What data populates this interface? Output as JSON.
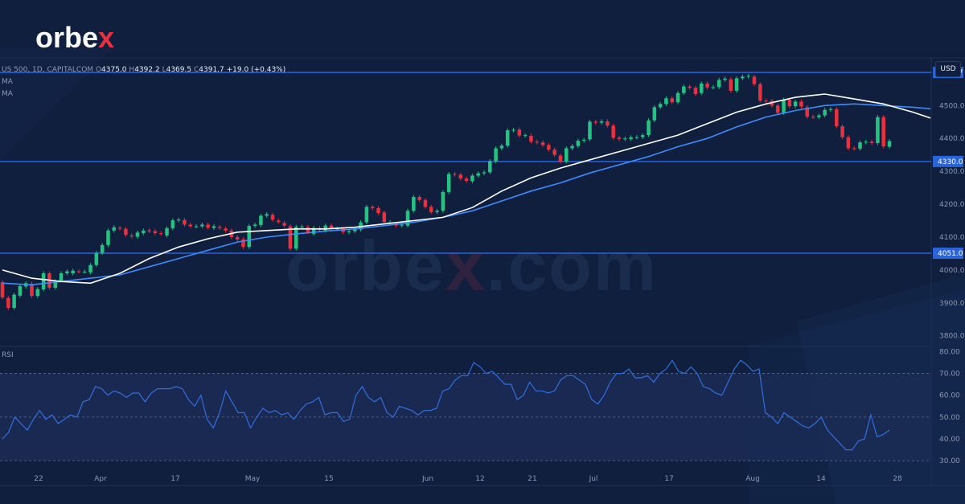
{
  "brand": {
    "logo_main": "orbe",
    "logo_x": "x",
    "watermark_main": "orbe",
    "watermark_x": "x",
    "watermark_tail": ".com"
  },
  "legend": {
    "symbol": "US 500, 1D, CAPITALCOM",
    "o_label": "O",
    "open": "4375.0",
    "h_label": "H",
    "high": "4392.2",
    "l_label": "L",
    "low": "4369.5",
    "c_label": "C",
    "close": "4391.7",
    "change": "+19.0 (+0.43%)",
    "ma1": "MA",
    "ma2": "MA"
  },
  "currency": "USD",
  "rsi_title": "RSI",
  "colors": {
    "bull": "#26c281",
    "bear": "#e8313f",
    "ma_fast": "#ffffff",
    "ma_slow": "#3d8bfd",
    "rsi_line": "#2f6fe0",
    "level_line": "#2b63d9",
    "band_fill": "#1b2b55"
  },
  "chart_data": {
    "type": "candlestick",
    "y_ticks": [
      3800.0,
      3900.0,
      4000.0,
      4100.0,
      4200.0,
      4300.0,
      4400.0,
      4500.0
    ],
    "ylim": [
      3770,
      4645
    ],
    "levels": [
      4600.7,
      4330.0,
      4051.0
    ],
    "level_labels": [
      "4600.7",
      "4330.0",
      "4051.0"
    ],
    "x_labels": [
      "22",
      "Apr",
      "17",
      "May",
      "15",
      "Jun",
      "12",
      "21",
      "Jul",
      "17",
      "Aug",
      "14",
      "28"
    ],
    "candles": [
      [
        3963,
        3917
      ],
      [
        3915,
        3885
      ],
      [
        3885,
        3925
      ],
      [
        3922,
        3951
      ],
      [
        3950,
        3960
      ],
      [
        3958,
        3921
      ],
      [
        3921,
        3942
      ],
      [
        3941,
        3990
      ],
      [
        3990,
        3946
      ],
      [
        3946,
        3965
      ],
      [
        3968,
        3990
      ],
      [
        3990,
        3996
      ],
      [
        3990,
        3998
      ],
      [
        3996,
        3995
      ],
      [
        3995,
        3995
      ],
      [
        3993,
        4015
      ],
      [
        4015,
        4052
      ],
      [
        4052,
        4076
      ],
      [
        4076,
        4120
      ],
      [
        4120,
        4130
      ],
      [
        4128,
        4126
      ],
      [
        4125,
        4107
      ],
      [
        4105,
        4102
      ],
      [
        4101,
        4114
      ],
      [
        4112,
        4120
      ],
      [
        4121,
        4118
      ],
      [
        4118,
        4112
      ],
      [
        4112,
        4110
      ],
      [
        4105,
        4127
      ],
      [
        4127,
        4151
      ],
      [
        4151,
        4153
      ],
      [
        4152,
        4138
      ],
      [
        4138,
        4133
      ],
      [
        4133,
        4133
      ],
      [
        4133,
        4138
      ],
      [
        4138,
        4129
      ],
      [
        4128,
        4133
      ],
      [
        4131,
        4128
      ],
      [
        4126,
        4120
      ],
      [
        4120,
        4100
      ],
      [
        4100,
        4093
      ],
      [
        4093,
        4070
      ],
      [
        4070,
        4134
      ],
      [
        4134,
        4138
      ],
      [
        4137,
        4165
      ],
      [
        4165,
        4170
      ],
      [
        4168,
        4153
      ],
      [
        4150,
        4146
      ],
      [
        4143,
        4135
      ],
      [
        4133,
        4065
      ],
      [
        4065,
        4131
      ],
      [
        4131,
        4132
      ],
      [
        4131,
        4115
      ],
      [
        4110,
        4128
      ],
      [
        4128,
        4122
      ],
      [
        4120,
        4135
      ],
      [
        4135,
        4126
      ],
      [
        4125,
        4126
      ],
      [
        4126,
        4115
      ],
      [
        4115,
        4118
      ],
      [
        4118,
        4123
      ],
      [
        4123,
        4145
      ],
      [
        4145,
        4192
      ],
      [
        4192,
        4188
      ],
      [
        4188,
        4173
      ],
      [
        4175,
        4146
      ],
      [
        4145,
        4145
      ],
      [
        4140,
        4135
      ],
      [
        4135,
        4138
      ],
      [
        4135,
        4180
      ],
      [
        4180,
        4222
      ],
      [
        4222,
        4213
      ],
      [
        4213,
        4192
      ],
      [
        4192,
        4176
      ],
      [
        4176,
        4180
      ],
      [
        4180,
        4237
      ],
      [
        4237,
        4292
      ],
      [
        4292,
        4290
      ],
      [
        4290,
        4278
      ],
      [
        4278,
        4271
      ],
      [
        4270,
        4287
      ],
      [
        4287,
        4294
      ],
      [
        4294,
        4297
      ],
      [
        4297,
        4331
      ],
      [
        4331,
        4370
      ],
      [
        4370,
        4378
      ],
      [
        4378,
        4425
      ],
      [
        4425,
        4426
      ],
      [
        4427,
        4409
      ],
      [
        4409,
        4410
      ],
      [
        4408,
        4390
      ],
      [
        4390,
        4388
      ],
      [
        4388,
        4380
      ],
      [
        4380,
        4366
      ],
      [
        4366,
        4350
      ],
      [
        4348,
        4330
      ],
      [
        4330,
        4370
      ],
      [
        4370,
        4377
      ],
      [
        4377,
        4393
      ],
      [
        4393,
        4396
      ],
      [
        4397,
        4451
      ],
      [
        4451,
        4448
      ],
      [
        4448,
        4452
      ],
      [
        4452,
        4439
      ],
      [
        4439,
        4402
      ],
      [
        4402,
        4398
      ],
      [
        4398,
        4400
      ],
      [
        4398,
        4403
      ],
      [
        4403,
        4404
      ],
      [
        4404,
        4410
      ],
      [
        4410,
        4455
      ],
      [
        4455,
        4495
      ],
      [
        4495,
        4505
      ],
      [
        4505,
        4522
      ],
      [
        4522,
        4510
      ],
      [
        4510,
        4538
      ],
      [
        4538,
        4558
      ],
      [
        4558,
        4554
      ],
      [
        4554,
        4535
      ],
      [
        4538,
        4567
      ],
      [
        4567,
        4555
      ],
      [
        4555,
        4556
      ],
      [
        4556,
        4578
      ],
      [
        4578,
        4582
      ],
      [
        4580,
        4545
      ],
      [
        4545,
        4583
      ],
      [
        4583,
        4588
      ],
      [
        4588,
        4590
      ],
      [
        4588,
        4565
      ],
      [
        4565,
        4515
      ],
      [
        4515,
        4514
      ],
      [
        4514,
        4500
      ],
      [
        4500,
        4478
      ],
      [
        4478,
        4518
      ],
      [
        4518,
        4498
      ],
      [
        4498,
        4512
      ],
      [
        4512,
        4497
      ],
      [
        4495,
        4466
      ],
      [
        4466,
        4465
      ],
      [
        4465,
        4470
      ],
      [
        4470,
        4487
      ],
      [
        4487,
        4489
      ],
      [
        4489,
        4437
      ],
      [
        4437,
        4404
      ],
      [
        4404,
        4370
      ],
      [
        4370,
        4369
      ],
      [
        4369,
        4388
      ],
      [
        4388,
        4390
      ],
      [
        4390,
        4386
      ],
      [
        4386,
        4465
      ],
      [
        4465,
        4376
      ],
      [
        4375,
        4392
      ]
    ],
    "ma_fast": [
      [
        0,
        4000
      ],
      [
        5,
        3975
      ],
      [
        10,
        3965
      ],
      [
        15,
        3960
      ],
      [
        20,
        3990
      ],
      [
        25,
        4035
      ],
      [
        30,
        4070
      ],
      [
        35,
        4095
      ],
      [
        40,
        4115
      ],
      [
        45,
        4120
      ],
      [
        50,
        4125
      ],
      [
        55,
        4125
      ],
      [
        60,
        4130
      ],
      [
        65,
        4140
      ],
      [
        70,
        4150
      ],
      [
        75,
        4160
      ],
      [
        80,
        4190
      ],
      [
        85,
        4240
      ],
      [
        90,
        4280
      ],
      [
        95,
        4310
      ],
      [
        100,
        4335
      ],
      [
        105,
        4360
      ],
      [
        110,
        4385
      ],
      [
        115,
        4410
      ],
      [
        120,
        4445
      ],
      [
        125,
        4480
      ],
      [
        130,
        4505
      ],
      [
        135,
        4525
      ],
      [
        140,
        4535
      ],
      [
        145,
        4520
      ],
      [
        150,
        4505
      ],
      [
        155,
        4480
      ],
      [
        158,
        4462
      ]
    ],
    "ma_slow": [
      [
        0,
        3960
      ],
      [
        5,
        3955
      ],
      [
        10,
        3965
      ],
      [
        15,
        3975
      ],
      [
        20,
        3985
      ],
      [
        25,
        4010
      ],
      [
        30,
        4035
      ],
      [
        35,
        4060
      ],
      [
        40,
        4085
      ],
      [
        45,
        4100
      ],
      [
        50,
        4110
      ],
      [
        55,
        4118
      ],
      [
        60,
        4125
      ],
      [
        65,
        4135
      ],
      [
        70,
        4145
      ],
      [
        75,
        4160
      ],
      [
        80,
        4180
      ],
      [
        85,
        4210
      ],
      [
        90,
        4240
      ],
      [
        95,
        4265
      ],
      [
        100,
        4295
      ],
      [
        105,
        4320
      ],
      [
        110,
        4345
      ],
      [
        115,
        4375
      ],
      [
        120,
        4400
      ],
      [
        125,
        4435
      ],
      [
        130,
        4465
      ],
      [
        135,
        4485
      ],
      [
        140,
        4500
      ],
      [
        145,
        4505
      ],
      [
        150,
        4500
      ],
      [
        155,
        4495
      ],
      [
        158,
        4490
      ]
    ],
    "rsi_ticks": [
      30,
      40,
      50,
      60,
      70,
      80
    ],
    "rsi_ylim": [
      26,
      82
    ],
    "rsi_band": [
      30,
      70
    ],
    "rsi": [
      40,
      43,
      50,
      47,
      44,
      49,
      53,
      49,
      51,
      47,
      49,
      51,
      50,
      57,
      58,
      64,
      63,
      60,
      62,
      61,
      59,
      61,
      61,
      57,
      61,
      63,
      63,
      63,
      64,
      63,
      58,
      55,
      60,
      49,
      45,
      52,
      62,
      57,
      52,
      52,
      45,
      50,
      54,
      52,
      53,
      51,
      52,
      49,
      53,
      56,
      57,
      59,
      51,
      52,
      52,
      48,
      49,
      60,
      64,
      59,
      57,
      59,
      52,
      50,
      55,
      54,
      53,
      51,
      53,
      53,
      54,
      62,
      63,
      67,
      69,
      69,
      75,
      73,
      70,
      71,
      68,
      65,
      65,
      58,
      60,
      66,
      62,
      62,
      61,
      62,
      67,
      69,
      69,
      67,
      65,
      58,
      56,
      60,
      66,
      70,
      70,
      72,
      68,
      68,
      69,
      66,
      70,
      72,
      76,
      71,
      70,
      73,
      70,
      64,
      63,
      61,
      60,
      66,
      72,
      76,
      74,
      71,
      72,
      52,
      50,
      47,
      52,
      50,
      48,
      46,
      45,
      47,
      50,
      44,
      41,
      38,
      35,
      35,
      39,
      40,
      51,
      41,
      42,
      44
    ]
  }
}
